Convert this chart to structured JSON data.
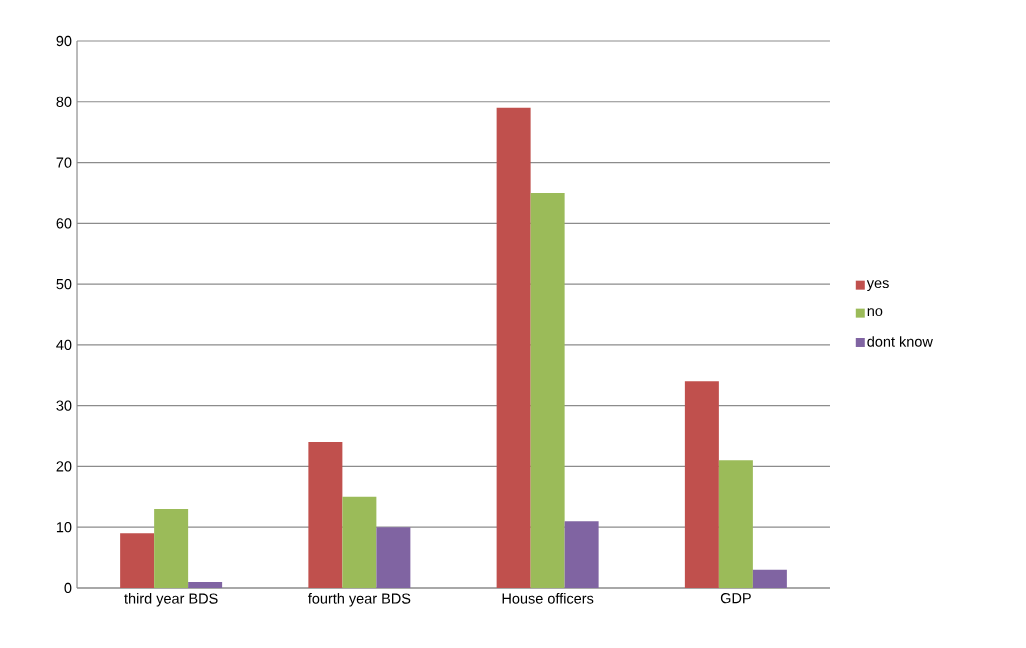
{
  "chart_data": {
    "type": "bar",
    "categories": [
      "third year BDS",
      "fourth year BDS",
      "House officers",
      "GDP"
    ],
    "series": [
      {
        "name": "yes",
        "color": "#c0504d",
        "values": [
          9,
          24,
          79,
          34
        ]
      },
      {
        "name": "no",
        "color": "#9bbb59",
        "values": [
          13,
          15,
          65,
          21
        ]
      },
      {
        "name": "dont know",
        "color": "#8064a2",
        "values": [
          1,
          10,
          11,
          3
        ]
      }
    ],
    "ylim": [
      0,
      90
    ],
    "yticks": [
      0,
      10,
      20,
      30,
      40,
      50,
      60,
      70,
      80,
      90
    ],
    "grid": "y",
    "legend": "right"
  }
}
